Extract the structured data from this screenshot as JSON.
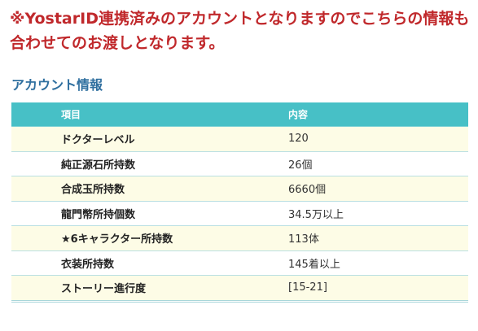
{
  "notice": {
    "text": "※YostarID連携済みのアカウントとなりますのでこちらの情報も合わせてのお渡しとなります。"
  },
  "account_info": {
    "title": "アカウント情報",
    "headers": {
      "item": "項目",
      "value": "内容"
    },
    "rows": [
      {
        "item": "ドクターレベル",
        "value": "120"
      },
      {
        "item": "純正源石所持数",
        "value": "26個"
      },
      {
        "item": "合成玉所持数",
        "value": "6660個"
      },
      {
        "item": "龍門幣所持個数",
        "value": "34.5万以上"
      },
      {
        "item": "★6キャラクター所持数",
        "value": "113体"
      },
      {
        "item": "衣装所持数",
        "value": "145着以上"
      },
      {
        "item": "ストーリー進行度",
        "value": "[15-21]"
      }
    ]
  },
  "colors": {
    "notice_red": "#c0282b",
    "title_blue": "#2f6f9f",
    "header_teal": "#47c0c6",
    "row_cream": "#fdfce6"
  }
}
